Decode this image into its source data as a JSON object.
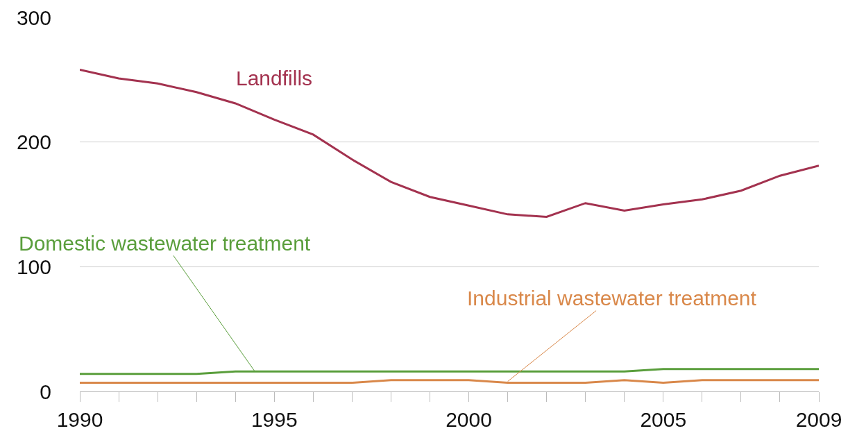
{
  "chart_data": {
    "type": "line",
    "x": [
      1990,
      1991,
      1992,
      1993,
      1994,
      1995,
      1996,
      1997,
      1998,
      1999,
      2000,
      2001,
      2002,
      2003,
      2004,
      2005,
      2006,
      2007,
      2008,
      2009
    ],
    "series": [
      {
        "name": "Landfills",
        "color": "#a3324f",
        "values": [
          258,
          251,
          247,
          240,
          231,
          218,
          206,
          186,
          168,
          156,
          149,
          142,
          140,
          151,
          145,
          150,
          154,
          161,
          173,
          181
        ]
      },
      {
        "name": "Domestic wastewater treatment",
        "color": "#5a9e3c",
        "values": [
          14,
          14,
          14,
          14,
          16,
          16,
          16,
          16,
          16,
          16,
          16,
          16,
          16,
          16,
          16,
          18,
          18,
          18,
          18,
          18
        ]
      },
      {
        "name": "Industrial wastewater treatment",
        "color": "#d9884a",
        "values": [
          7,
          7,
          7,
          7,
          7,
          7,
          7,
          7,
          9,
          9,
          9,
          7,
          7,
          7,
          9,
          7,
          9,
          9,
          9,
          9
        ]
      }
    ],
    "xlim": [
      1990,
      2009
    ],
    "xticks": [
      1990,
      {
        "value": 1991,
        "label": null
      },
      {
        "value": 1992,
        "label": null
      },
      {
        "value": 1993,
        "label": null
      },
      {
        "value": 1994,
        "label": null
      },
      1995,
      {
        "value": 1996,
        "label": null
      },
      {
        "value": 1997,
        "label": null
      },
      {
        "value": 1998,
        "label": null
      },
      {
        "value": 1999,
        "label": null
      },
      2000,
      {
        "value": 2001,
        "label": null
      },
      {
        "value": 2002,
        "label": null
      },
      {
        "value": 2003,
        "label": null
      },
      {
        "value": 2004,
        "label": null
      },
      2005,
      {
        "value": 2006,
        "label": null
      },
      {
        "value": 2007,
        "label": null
      },
      {
        "value": 2008,
        "label": null
      },
      2009
    ],
    "ylim": [
      0,
      300
    ],
    "yticks": [
      0,
      100,
      200,
      300
    ],
    "grid": "y",
    "legend": false,
    "marker": "none",
    "line_style": "solid"
  }
}
